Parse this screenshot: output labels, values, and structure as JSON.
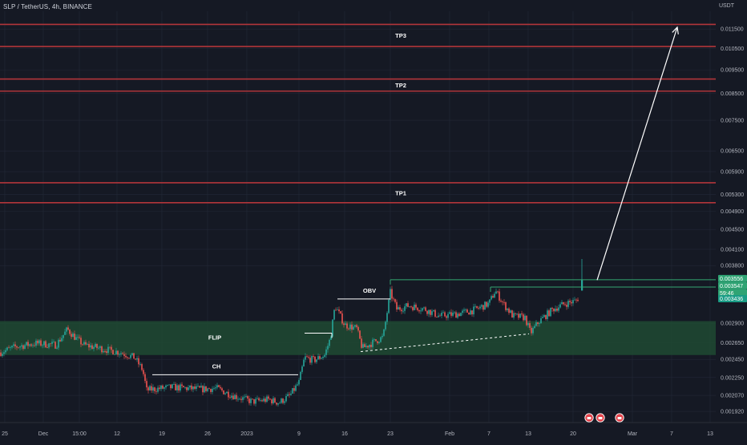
{
  "header": {
    "symbol": "SLP / TetherUS, 4h, BINANCE",
    "currency": "USDT"
  },
  "colors": {
    "background": "#151924",
    "grid": "#232837",
    "up": "#26a69a",
    "down": "#ef5350",
    "tp_line": "#b2353a",
    "zone_fill": "#1e4a32",
    "level_line": "#35a872",
    "badge_green": "#2fa474",
    "badge_teal": "#1a9d86"
  },
  "chart_data": {
    "type": "candlestick",
    "y_axis": {
      "scale": "log",
      "range": [
        0.00185,
        0.0125
      ],
      "tick_labels": [
        "0.011500",
        "0.010500",
        "0.009500",
        "0.008500",
        "0.007500",
        "0.006500",
        "0.005900",
        "0.005300",
        "0.004900",
        "0.004500",
        "0.004100",
        "0.003800",
        "0.002900",
        "0.002650",
        "0.002450",
        "0.002250",
        "0.002070",
        "0.001920"
      ]
    },
    "x_axis": {
      "tick_labels": [
        "25",
        "Dec",
        "15:00",
        "12",
        "19",
        "26",
        "2023",
        "9",
        "16",
        "23",
        "Feb",
        "7",
        "13",
        "20",
        "Mar",
        "7",
        "13"
      ]
    },
    "price_badges": [
      {
        "label": "0.003556",
        "style": "green"
      },
      {
        "label": "0.003547",
        "style": "green"
      },
      {
        "label": "59:46",
        "style": "green"
      },
      {
        "label": "0.003436",
        "style": "teal"
      }
    ],
    "resistance_lines": [
      {
        "name": "TP3",
        "band": [
          0.0106,
          0.01175
        ]
      },
      {
        "name": "TP2",
        "band": [
          0.0086,
          0.0091
        ]
      },
      {
        "name": "TP1",
        "band": [
          0.0051,
          0.0056
        ]
      }
    ],
    "zones": [
      {
        "label": "FLIP",
        "range": [
          0.0025,
          0.00293
        ]
      }
    ],
    "annotations": [
      {
        "label": "CH"
      },
      {
        "label": "OBV"
      }
    ],
    "projection_target": 0.0116,
    "current_price": 0.003547
  }
}
